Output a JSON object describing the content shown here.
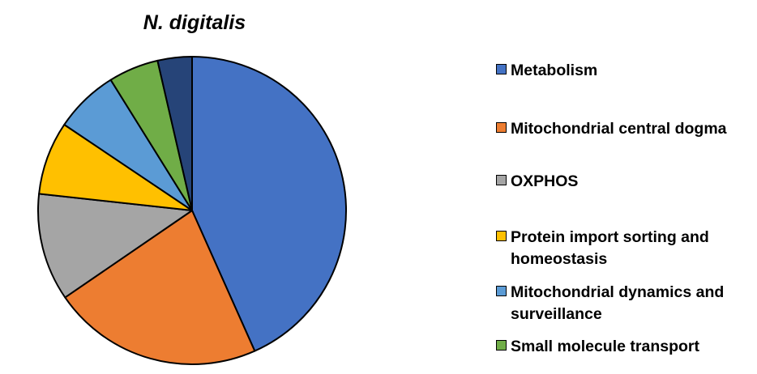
{
  "chart_data": {
    "type": "pie",
    "title": "N. digitalis",
    "legend_position": "right",
    "slices": [
      {
        "label": "Metabolism",
        "value": 44.5,
        "color": "#4472C4"
      },
      {
        "label": "Mitochondrial central dogma",
        "value": 22.7,
        "color": "#ED7D31"
      },
      {
        "label": "OXPHOS",
        "value": 11.6,
        "color": "#A5A5A5"
      },
      {
        "label": "Protein import sorting and homeostasis",
        "value": 7.9,
        "color": "#FFC000"
      },
      {
        "label": "Mitochondrial dynamics and surveillance",
        "value": 6.9,
        "color": "#5B9BD5"
      },
      {
        "label": "Small molecule transport",
        "value": 5.4,
        "color": "#70AD47"
      },
      {
        "label": "",
        "value": 3.7,
        "color": "#264478"
      }
    ]
  }
}
